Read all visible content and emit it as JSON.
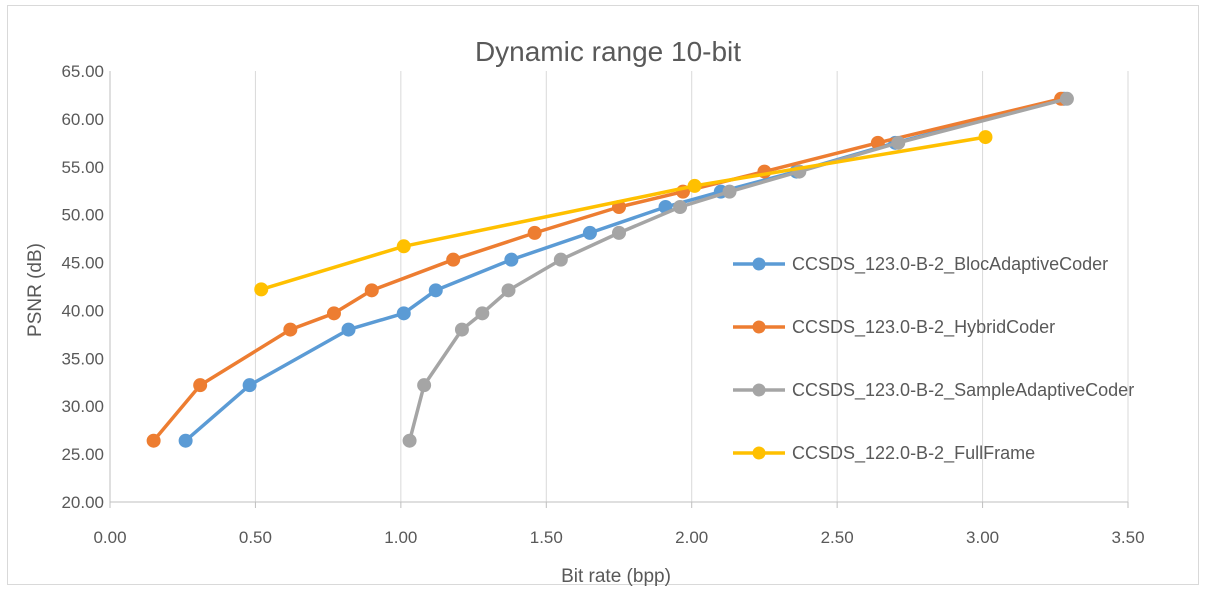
{
  "chart_data": {
    "type": "line",
    "title": "Dynamic range 10-bit",
    "xlabel": "Bit rate (bpp)",
    "ylabel": "PSNR (dB)",
    "xlim": [
      0,
      3.5
    ],
    "ylim": [
      20,
      65
    ],
    "x_ticks": [
      "0.00",
      "0.50",
      "1.00",
      "1.50",
      "2.00",
      "2.50",
      "3.00",
      "3.50"
    ],
    "y_ticks": [
      "20.00",
      "25.00",
      "30.00",
      "35.00",
      "40.00",
      "45.00",
      "50.00",
      "55.00",
      "60.00",
      "65.00"
    ],
    "grid": "vertical",
    "legend_position": "right",
    "series": [
      {
        "name": "CCSDS_123.0-B-2_BlocAdaptiveCoder",
        "color": "#5b9bd5",
        "points": [
          [
            0.26,
            26.4
          ],
          [
            0.48,
            32.2
          ],
          [
            0.82,
            38.0
          ],
          [
            1.01,
            39.7
          ],
          [
            1.12,
            42.1
          ],
          [
            1.38,
            45.3
          ],
          [
            1.65,
            48.1
          ],
          [
            1.91,
            50.8
          ],
          [
            2.1,
            52.4
          ],
          [
            2.36,
            54.5
          ],
          [
            2.7,
            57.5
          ],
          [
            3.28,
            62.1
          ]
        ]
      },
      {
        "name": "CCSDS_123.0-B-2_HybridCoder",
        "color": "#ed7d31",
        "points": [
          [
            0.15,
            26.4
          ],
          [
            0.31,
            32.2
          ],
          [
            0.62,
            38.0
          ],
          [
            0.77,
            39.7
          ],
          [
            0.9,
            42.1
          ],
          [
            1.18,
            45.3
          ],
          [
            1.46,
            48.1
          ],
          [
            1.75,
            50.8
          ],
          [
            1.97,
            52.4
          ],
          [
            2.25,
            54.5
          ],
          [
            2.64,
            57.5
          ],
          [
            3.27,
            62.1
          ]
        ]
      },
      {
        "name": "CCSDS_123.0-B-2_SampleAdaptiveCoder",
        "color": "#a5a5a5",
        "points": [
          [
            1.03,
            26.4
          ],
          [
            1.08,
            32.2
          ],
          [
            1.21,
            38.0
          ],
          [
            1.28,
            39.7
          ],
          [
            1.37,
            42.1
          ],
          [
            1.55,
            45.3
          ],
          [
            1.75,
            48.1
          ],
          [
            1.96,
            50.8
          ],
          [
            2.13,
            52.4
          ],
          [
            2.37,
            54.5
          ],
          [
            2.71,
            57.5
          ],
          [
            3.29,
            62.1
          ]
        ]
      },
      {
        "name": "CCSDS_122.0-B-2_FullFrame",
        "color": "#ffc000",
        "points": [
          [
            0.52,
            42.2
          ],
          [
            1.01,
            46.7
          ],
          [
            2.01,
            53.0
          ],
          [
            3.01,
            58.1
          ]
        ]
      }
    ]
  }
}
